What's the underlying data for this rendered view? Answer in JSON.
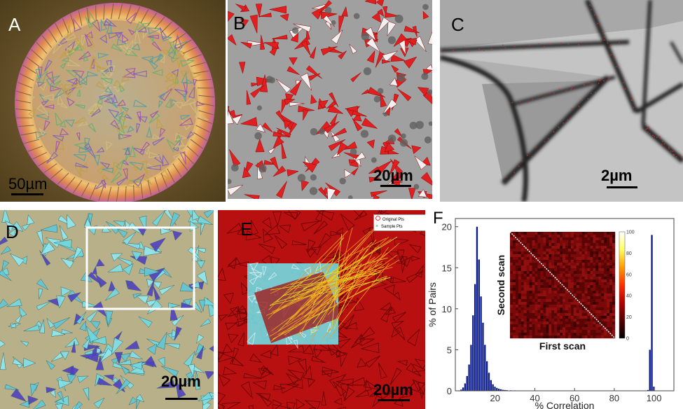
{
  "panels": {
    "a": {
      "label": "A",
      "scale": "50µm"
    },
    "b": {
      "label": "B",
      "scale": "20µm"
    },
    "c": {
      "label": "C",
      "scale": "2µm"
    },
    "d": {
      "label": "D",
      "scale": "20µm"
    },
    "e": {
      "label": "E",
      "scale": "20µm",
      "legend": [
        "Original Pts",
        "Sample Pts"
      ]
    },
    "f": {
      "label": "F"
    }
  },
  "chart_data": {
    "type": "bar",
    "xlabel": "% Correlation",
    "ylabel": "% of Pairs",
    "xlim": [
      0,
      110
    ],
    "ylim": [
      0,
      21
    ],
    "xticks": [
      20,
      40,
      60,
      80,
      100
    ],
    "yticks": [
      0,
      5,
      10,
      15,
      20
    ],
    "bar_width": 1,
    "x": [
      2,
      3,
      4,
      5,
      6,
      7,
      8,
      9,
      10,
      11,
      12,
      13,
      14,
      15,
      16,
      17,
      18,
      19,
      20,
      21,
      22,
      23,
      24,
      25,
      26,
      28,
      30,
      32,
      34,
      36,
      38,
      40,
      45,
      50,
      55,
      97,
      98,
      99,
      100
    ],
    "values": [
      0.05,
      0.15,
      0.4,
      0.9,
      1.8,
      3.2,
      5.6,
      9.2,
      13.0,
      20.0,
      16.0,
      11.5,
      8.3,
      5.6,
      3.6,
      2.2,
      1.3,
      0.8,
      0.5,
      0.35,
      0.25,
      0.18,
      0.12,
      0.1,
      0.08,
      0.06,
      0.05,
      0.04,
      0.04,
      0.03,
      0.03,
      0.03,
      0.02,
      0.02,
      0.02,
      0.1,
      5.0,
      19.0,
      0.5
    ],
    "inset": {
      "type": "heatmap",
      "xlabel": "First scan",
      "ylabel": "Second scan",
      "colorbar_ticks": [
        0,
        20,
        40,
        60,
        80,
        100
      ],
      "colorscale": [
        "#000000",
        "#550000",
        "#b00000",
        "#ff3000",
        "#ff9a00",
        "#ffff60",
        "#ffffff"
      ],
      "off_diagonal_value": 10,
      "diagonal_value": 100
    }
  }
}
